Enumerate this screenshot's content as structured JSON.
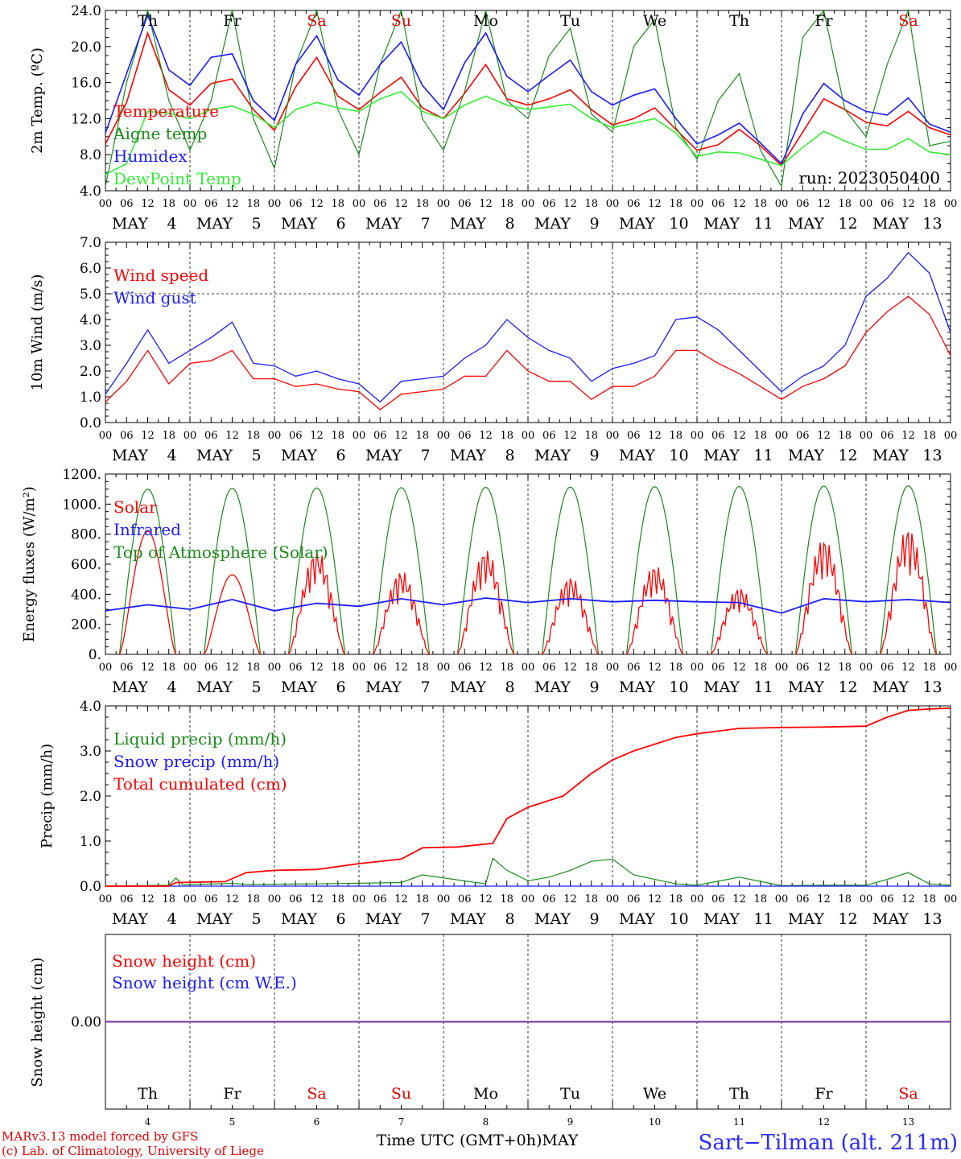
{
  "footer": {
    "model_line1": "MARv3.13 model forced by GFS",
    "model_line2": "(c) Lab. of Climatology, University of Liege",
    "xlabel": "Time UTC (GMT+0h)MAY",
    "station": "Sart−Tilman (alt. 211m)"
  },
  "days": [
    {
      "name": "Th",
      "date": "4",
      "weekend": false
    },
    {
      "name": "Fr",
      "date": "5",
      "weekend": false
    },
    {
      "name": "Sa",
      "date": "6",
      "weekend": true
    },
    {
      "name": "Su",
      "date": "7",
      "weekend": true
    },
    {
      "name": "Mo",
      "date": "8",
      "weekend": false
    },
    {
      "name": "Tu",
      "date": "9",
      "weekend": false
    },
    {
      "name": "We",
      "date": "10",
      "weekend": false
    },
    {
      "name": "Th",
      "date": "11",
      "weekend": false
    },
    {
      "name": "Fr",
      "date": "12",
      "weekend": false
    },
    {
      "name": "Sa",
      "date": "13",
      "weekend": true
    }
  ],
  "hour_labels": [
    "00",
    "06",
    "12",
    "18"
  ],
  "month_label": "MAY",
  "colors": {
    "red": "#ff0000",
    "darkgreen": "#1a8a1a",
    "blue": "#1a1aff",
    "lightgreen": "#33ee33",
    "purple": "#7030a0",
    "weekend": "#e00000"
  },
  "chart_data": [
    {
      "type": "line",
      "ylabel": "2m Temp. (ºC)",
      "ylim": [
        4,
        24
      ],
      "yticks": [
        "4.0",
        "8.0",
        "12.0",
        "16.0",
        "20.0",
        "24.0"
      ],
      "annotation": "run: 2023050400",
      "x_unit": "hours since May 4 00 UTC",
      "series": [
        {
          "name": "Temperature",
          "color": "red",
          "x": [
            0,
            6,
            12,
            18,
            24,
            30,
            36,
            42,
            48,
            54,
            60,
            66,
            72,
            78,
            84,
            90,
            96,
            102,
            108,
            114,
            120,
            126,
            132,
            138,
            144,
            150,
            156,
            162,
            168,
            174,
            180,
            186,
            192,
            198,
            204,
            210,
            216,
            222,
            228,
            234,
            240
          ],
          "values": [
            9.2,
            13.8,
            21.5,
            15.2,
            13.5,
            15.9,
            16.4,
            13.0,
            10.7,
            15.5,
            18.8,
            14.5,
            13.0,
            14.9,
            16.6,
            13.2,
            12.0,
            14.8,
            18.0,
            14.2,
            13.5,
            14.2,
            15.2,
            13.0,
            11.3,
            12.0,
            13.2,
            10.8,
            8.5,
            9.1,
            10.8,
            9.0,
            6.8,
            10.5,
            14.2,
            13.0,
            11.6,
            11.2,
            12.8,
            11.0,
            10.2
          ]
        },
        {
          "name": "Aigne temp",
          "color": "darkgreen",
          "x": [
            0,
            6,
            12,
            18,
            24,
            30,
            36,
            42,
            48,
            54,
            60,
            66,
            72,
            78,
            84,
            90,
            96,
            102,
            108,
            114,
            120,
            126,
            132,
            138,
            144,
            150,
            156,
            162,
            168,
            174,
            180,
            186,
            192,
            198,
            204,
            210,
            216,
            222,
            228,
            234,
            240
          ],
          "values": [
            4.5,
            16.0,
            24.0,
            14.0,
            8.5,
            14.0,
            24.0,
            12.0,
            6.5,
            18.0,
            24.0,
            13.0,
            8.0,
            18.0,
            24.0,
            12.0,
            8.5,
            15.0,
            24.0,
            14.0,
            12.0,
            19.0,
            22.0,
            12.5,
            10.5,
            20.0,
            23.0,
            11.0,
            7.5,
            14.0,
            17.0,
            8.5,
            4.5,
            21.0,
            24.0,
            13.0,
            10.0,
            18.0,
            24.0,
            9.0,
            9.5
          ]
        },
        {
          "name": "Humidex",
          "color": "blue",
          "x": [
            0,
            6,
            12,
            18,
            24,
            30,
            36,
            42,
            48,
            54,
            60,
            66,
            72,
            78,
            84,
            90,
            96,
            102,
            108,
            114,
            120,
            126,
            132,
            138,
            144,
            150,
            156,
            162,
            168,
            174,
            180,
            186,
            192,
            198,
            204,
            210,
            216,
            222,
            228,
            234,
            240
          ],
          "values": [
            10.4,
            17.0,
            23.5,
            17.4,
            15.7,
            18.8,
            19.2,
            14.0,
            11.8,
            18.0,
            21.2,
            16.3,
            14.6,
            18.0,
            20.5,
            15.7,
            13.0,
            18.2,
            21.5,
            16.7,
            15.0,
            16.8,
            18.5,
            15.0,
            13.5,
            14.6,
            15.3,
            12.0,
            9.2,
            10.2,
            11.5,
            9.3,
            7.0,
            12.5,
            15.9,
            14.0,
            12.8,
            12.4,
            14.3,
            11.4,
            10.5
          ]
        },
        {
          "name": "DewPoint Temp",
          "color": "lightgreen",
          "x": [
            0,
            6,
            12,
            18,
            24,
            30,
            36,
            42,
            48,
            54,
            60,
            66,
            72,
            78,
            84,
            90,
            96,
            102,
            108,
            114,
            120,
            126,
            132,
            138,
            144,
            150,
            156,
            162,
            168,
            174,
            180,
            186,
            192,
            198,
            204,
            210,
            216,
            222,
            228,
            234,
            240
          ],
          "values": [
            5.8,
            7.0,
            12.8,
            12.6,
            12.0,
            13.0,
            13.4,
            12.5,
            11.0,
            13.0,
            13.8,
            13.2,
            12.8,
            14.2,
            15.0,
            12.8,
            12.0,
            13.5,
            14.5,
            13.5,
            13.0,
            13.3,
            13.6,
            12.0,
            11.0,
            11.5,
            12.0,
            10.4,
            7.8,
            8.3,
            8.2,
            7.5,
            6.8,
            8.8,
            10.6,
            9.5,
            8.6,
            8.6,
            9.8,
            8.3,
            8.0
          ]
        }
      ]
    },
    {
      "type": "line",
      "ylabel": "10m Wind (m/s)",
      "ylim": [
        0,
        7
      ],
      "yticks": [
        "0.0",
        "1.0",
        "2.0",
        "3.0",
        "4.0",
        "5.0",
        "6.0",
        "7.0"
      ],
      "x_unit": "hours since May 4 00 UTC",
      "series": [
        {
          "name": "Wind speed",
          "color": "red",
          "x": [
            0,
            6,
            12,
            18,
            24,
            30,
            36,
            42,
            48,
            54,
            60,
            66,
            72,
            78,
            84,
            90,
            96,
            102,
            108,
            114,
            120,
            126,
            132,
            138,
            144,
            150,
            156,
            162,
            168,
            174,
            180,
            186,
            192,
            198,
            204,
            210,
            216,
            222,
            228,
            234,
            240
          ],
          "values": [
            0.8,
            1.6,
            2.8,
            1.5,
            2.3,
            2.4,
            2.8,
            1.7,
            1.7,
            1.4,
            1.5,
            1.3,
            1.2,
            0.5,
            1.1,
            1.2,
            1.3,
            1.8,
            1.8,
            2.8,
            2.0,
            1.6,
            1.6,
            0.9,
            1.4,
            1.4,
            1.8,
            2.8,
            2.8,
            2.3,
            1.9,
            1.4,
            0.9,
            1.4,
            1.7,
            2.2,
            3.5,
            4.3,
            4.9,
            4.2,
            2.6
          ]
        },
        {
          "name": "Wind gust",
          "color": "blue",
          "x": [
            0,
            6,
            12,
            18,
            24,
            30,
            36,
            42,
            48,
            54,
            60,
            66,
            72,
            78,
            84,
            90,
            96,
            102,
            108,
            114,
            120,
            126,
            132,
            138,
            144,
            150,
            156,
            162,
            168,
            174,
            180,
            186,
            192,
            198,
            204,
            210,
            216,
            222,
            228,
            234,
            240
          ],
          "values": [
            1.1,
            2.3,
            3.6,
            2.3,
            2.8,
            3.3,
            3.9,
            2.3,
            2.2,
            1.8,
            2.0,
            1.7,
            1.5,
            0.8,
            1.6,
            1.7,
            1.8,
            2.5,
            3.0,
            4.0,
            3.3,
            2.8,
            2.5,
            1.6,
            2.1,
            2.3,
            2.6,
            4.0,
            4.1,
            3.6,
            2.8,
            2.0,
            1.2,
            1.8,
            2.2,
            3.0,
            4.9,
            5.6,
            6.6,
            5.8,
            3.5
          ]
        }
      ]
    },
    {
      "type": "line",
      "ylabel": "Energy fluxes (W/m²)",
      "ylim": [
        0,
        1200
      ],
      "yticks": [
        "0.",
        "200.",
        "400.",
        "600.",
        "800.",
        "1000.",
        "1200."
      ],
      "x_unit": "hours since May 4 00 UTC",
      "toa_peak": [
        1100,
        1105,
        1108,
        1110,
        1112,
        1114,
        1116,
        1118,
        1120,
        1122
      ],
      "solar_peak": [
        820,
        530,
        700,
        560,
        700,
        520,
        600,
        450,
        780,
        850
      ],
      "series": [
        {
          "name": "Solar",
          "color": "red"
        },
        {
          "name": "Infrared",
          "color": "blue",
          "x": [
            0,
            12,
            24,
            36,
            48,
            60,
            72,
            84,
            96,
            108,
            120,
            132,
            144,
            156,
            168,
            180,
            192,
            204,
            216,
            228,
            240
          ],
          "values": [
            290,
            330,
            300,
            365,
            290,
            340,
            320,
            370,
            330,
            375,
            345,
            370,
            350,
            360,
            350,
            345,
            275,
            370,
            350,
            365,
            345
          ]
        },
        {
          "name": "Top of Atmosphere (Solar)",
          "color": "darkgreen"
        }
      ]
    },
    {
      "type": "line",
      "ylabel": "Precip (mm/h)",
      "ylim": [
        0,
        4
      ],
      "yticks": [
        "0.0",
        "1.0",
        "2.0",
        "3.0",
        "4.0"
      ],
      "x_unit": "hours since May 4 00 UTC",
      "series": [
        {
          "name": "Liquid precip (mm/h)",
          "color": "darkgreen",
          "x": [
            0,
            18,
            20,
            22,
            36,
            40,
            60,
            84,
            90,
            108,
            110,
            114,
            120,
            126,
            132,
            138,
            144,
            150,
            162,
            168,
            180,
            192,
            204,
            216,
            222,
            228,
            234,
            240
          ],
          "values": [
            0,
            0.02,
            0.18,
            0.03,
            0.06,
            0.04,
            0.05,
            0.08,
            0.25,
            0.05,
            0.62,
            0.35,
            0.12,
            0.2,
            0.35,
            0.55,
            0.6,
            0.25,
            0.05,
            0.02,
            0.2,
            0.01,
            0.02,
            0.02,
            0.15,
            0.3,
            0.05,
            0.02
          ]
        },
        {
          "name": "Snow precip (mm/h)",
          "color": "blue",
          "x": [
            0,
            240
          ],
          "values": [
            0,
            0
          ]
        },
        {
          "name": "Total cumulated (cm)",
          "color": "red",
          "x": [
            0,
            18,
            20,
            34,
            40,
            48,
            60,
            72,
            84,
            90,
            100,
            110,
            114,
            120,
            130,
            138,
            144,
            150,
            162,
            168,
            180,
            192,
            204,
            216,
            222,
            228,
            234,
            240
          ],
          "values": [
            0,
            0,
            0.08,
            0.1,
            0.3,
            0.35,
            0.37,
            0.5,
            0.6,
            0.85,
            0.87,
            0.95,
            1.5,
            1.75,
            2.0,
            2.5,
            2.8,
            3.0,
            3.3,
            3.38,
            3.5,
            3.52,
            3.53,
            3.55,
            3.75,
            3.9,
            3.93,
            3.95
          ]
        }
      ]
    },
    {
      "type": "line",
      "ylabel": "Snow height (cm)",
      "yticks": [
        "0.00"
      ],
      "x_unit": "hours since May 4 00 UTC",
      "series": [
        {
          "name": "Snow height (cm)",
          "color": "red",
          "x": [
            0,
            240
          ],
          "values": [
            0,
            0
          ]
        },
        {
          "name": "Snow height (cm W.E.)",
          "color": "blue",
          "x": [
            0,
            240
          ],
          "values": [
            0,
            0
          ]
        }
      ]
    }
  ]
}
